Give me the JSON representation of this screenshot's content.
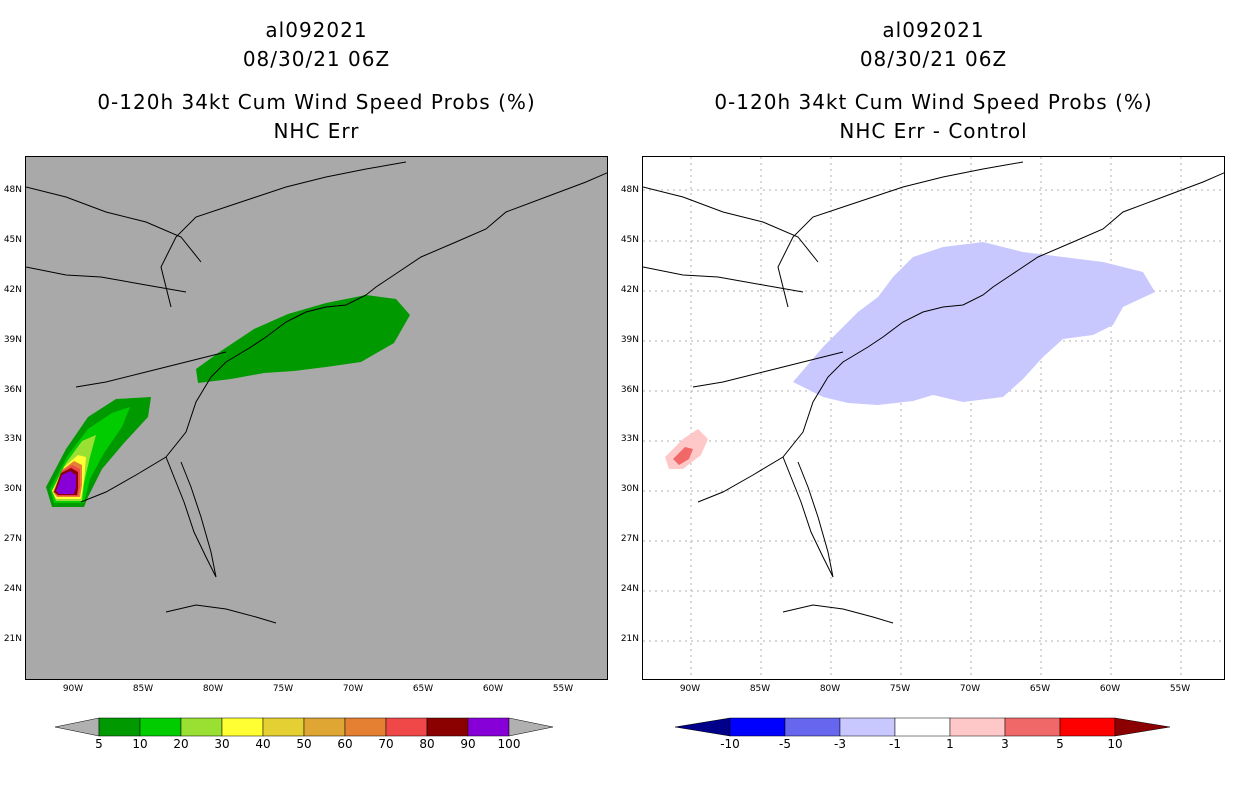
{
  "left": {
    "title": {
      "line1": "al092021",
      "line2": "08/30/21 06Z",
      "line3": "0-120h 34kt Cum Wind Speed Probs (%)",
      "line4": "NHC Err"
    },
    "colorbar": {
      "labels": [
        "5",
        "10",
        "20",
        "30",
        "40",
        "50",
        "60",
        "70",
        "80",
        "90",
        "100"
      ],
      "colors": [
        "#009900",
        "#00cc00",
        "#99e033",
        "#ffff33",
        "#e5d033",
        "#e0a633",
        "#e58033",
        "#f04848",
        "#8b0000",
        "#8800d8"
      ],
      "arrow_color": "#b0b0b0"
    }
  },
  "right": {
    "title": {
      "line1": "al092021",
      "line2": "08/30/21 06Z",
      "line3": "0-120h 34kt Cum Wind Speed Probs (%)",
      "line4": "NHC Err - Control"
    },
    "colorbar": {
      "labels": [
        "-10",
        "-5",
        "-3",
        "-1",
        "1",
        "3",
        "5",
        "10"
      ],
      "colors": [
        "#0000cc",
        "#0000ff",
        "#6666ee",
        "#c8c8ff",
        "#ffffff",
        "#ffc8c8",
        "#f06868",
        "#ff0000",
        "#ee0000"
      ],
      "left_arrow_color": "#00008b",
      "right_arrow_color": "#8b0000"
    }
  },
  "map": {
    "lat_labels": [
      "48N",
      "45N",
      "42N",
      "39N",
      "36N",
      "33N",
      "30N",
      "27N",
      "24N",
      "21N"
    ],
    "lon_labels": [
      "90W",
      "85W",
      "80W",
      "75W",
      "70W",
      "65W",
      "60W",
      "55W"
    ],
    "colors": {
      "land_bg_left": "#a9a9a9",
      "green_dark": "#009900",
      "green": "#00cc00",
      "lightgreen": "#99e033",
      "yellow": "#ffff33",
      "orange": "#e58033",
      "red": "#f04848",
      "darkred": "#8b0000",
      "purple": "#8800d8",
      "lightblue": "#c8c8ff",
      "pink": "#ffc8c8",
      "salmon": "#f06868"
    }
  }
}
